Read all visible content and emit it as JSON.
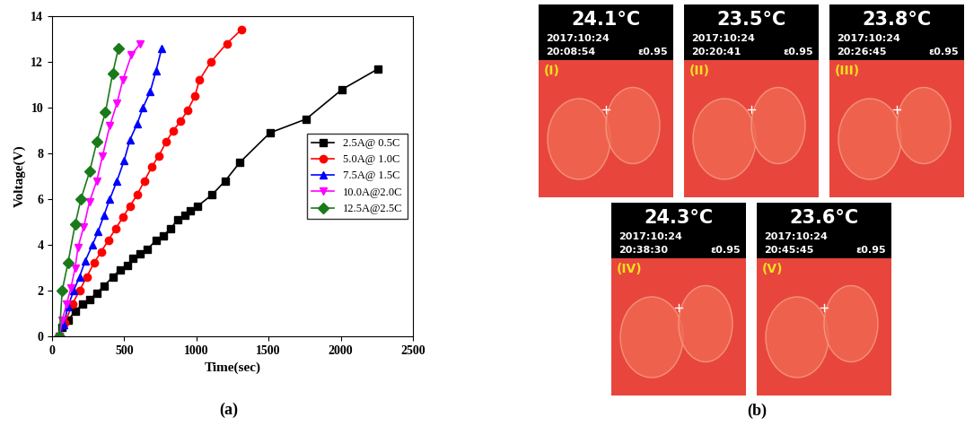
{
  "chart_data": {
    "type": "line",
    "caption": "(a)",
    "x_label": "Time(sec)",
    "y_label": "Voltage(V)",
    "xlim": [
      0,
      2500
    ],
    "xticks": [
      0,
      500,
      1000,
      1500,
      2000,
      2500
    ],
    "ylim": [
      0,
      14
    ],
    "yticks": [
      0,
      2,
      4,
      6,
      8,
      10,
      12,
      14
    ],
    "legend": "center right",
    "series": [
      {
        "name": "2.5A@ 0.5C",
        "color": "#000000",
        "marker": "square",
        "line_style": "solid",
        "x": [
          50,
          70,
          110,
          160,
          210,
          260,
          310,
          360,
          420,
          470,
          520,
          560,
          610,
          660,
          720,
          770,
          820,
          870,
          920,
          960,
          1010,
          1110,
          1200,
          1300,
          1510,
          1760,
          2010,
          2260
        ],
        "values": [
          0,
          0.4,
          0.7,
          1.1,
          1.4,
          1.6,
          1.9,
          2.2,
          2.6,
          2.9,
          3.1,
          3.4,
          3.6,
          3.8,
          4.2,
          4.4,
          4.7,
          5.1,
          5.3,
          5.5,
          5.7,
          6.2,
          6.8,
          7.6,
          8.9,
          9.5,
          10.8,
          11.7
        ]
      },
      {
        "name": "5.0A@ 1.0C",
        "color": "#ff0000",
        "marker": "circle",
        "line_style": "solid",
        "x": [
          50,
          90,
          140,
          190,
          240,
          290,
          340,
          390,
          440,
          490,
          540,
          590,
          640,
          690,
          740,
          790,
          840,
          890,
          940,
          990,
          1020,
          1100,
          1210,
          1310
        ],
        "values": [
          0,
          0.6,
          1.4,
          2.0,
          2.6,
          3.2,
          3.7,
          4.2,
          4.7,
          5.2,
          5.7,
          6.2,
          6.8,
          7.4,
          7.9,
          8.5,
          9.0,
          9.4,
          9.9,
          10.5,
          11.2,
          12.0,
          12.8,
          13.4
        ]
      },
      {
        "name": "7.5A@ 1.5C",
        "color": "#0000ff",
        "marker": "triangle_up",
        "line_style": "solid",
        "x": [
          50,
          80,
          110,
          150,
          190,
          230,
          280,
          320,
          360,
          400,
          450,
          500,
          540,
          590,
          630,
          680,
          720,
          760
        ],
        "values": [
          0,
          0.5,
          1.3,
          2.0,
          2.6,
          3.3,
          4.0,
          4.6,
          5.3,
          6.0,
          6.8,
          7.7,
          8.6,
          9.3,
          10.0,
          10.7,
          11.6,
          12.6
        ]
      },
      {
        "name": "10.0A@2.0C",
        "color": "#ff00ff",
        "marker": "triangle_down",
        "line_style": "solid",
        "x": [
          50,
          70,
          100,
          130,
          160,
          180,
          220,
          260,
          310,
          350,
          400,
          450,
          490,
          550,
          610
        ],
        "values": [
          0,
          0.7,
          1.4,
          2.1,
          3.0,
          3.9,
          4.8,
          5.9,
          6.8,
          7.9,
          9.2,
          10.2,
          11.2,
          12.3,
          12.8
        ]
      },
      {
        "name": "12.5A@2.5C",
        "color": "#1a7a1a",
        "marker": "diamond",
        "line_style": "solid",
        "x": [
          50,
          70,
          110,
          160,
          200,
          260,
          310,
          370,
          420,
          460
        ],
        "values": [
          0,
          2.0,
          3.2,
          4.9,
          6.0,
          7.2,
          8.5,
          9.8,
          11.5,
          12.6
        ]
      }
    ]
  },
  "thermal_images": {
    "caption": "(b)",
    "images": [
      {
        "label": "(I)",
        "temperature": "24.1°C",
        "date": "2017:10:24",
        "time": "20:08:54",
        "emissivity": "ε0.95"
      },
      {
        "label": "(II)",
        "temperature": "23.5°C",
        "date": "2017:10:24",
        "time": "20:20:41",
        "emissivity": "ε0.95"
      },
      {
        "label": "(III)",
        "temperature": "23.8°C",
        "date": "2017:10:24",
        "time": "20:26:45",
        "emissivity": "ε0.95"
      },
      {
        "label": "(IV)",
        "temperature": "24.3°C",
        "date": "2017:10:24",
        "time": "20:38:30",
        "emissivity": "ε0.95"
      },
      {
        "label": "(V)",
        "temperature": "23.6°C",
        "date": "2017:10:24",
        "time": "20:45:45",
        "emissivity": "ε0.95"
      }
    ]
  }
}
